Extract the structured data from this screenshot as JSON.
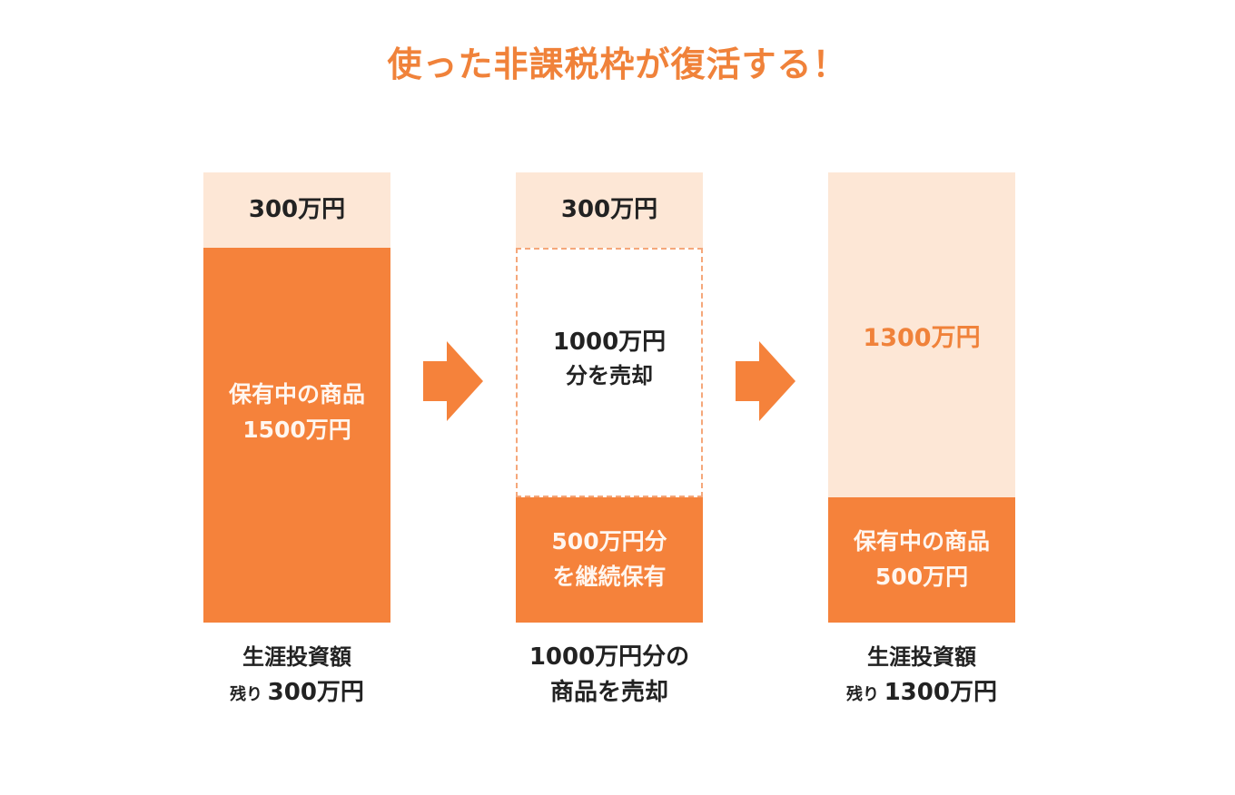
{
  "title": "使った非課税枠が復活する！",
  "columns": [
    {
      "top_label": "300万円",
      "main_lines": [
        "保有中の商品",
        "1500万円"
      ],
      "caption_line1": "生涯投資額",
      "caption_prefix": "残り",
      "caption_amount": "300万円"
    },
    {
      "top_label": "300万円",
      "sold_lines": [
        "1000万円",
        "分を売却"
      ],
      "kept_lines": [
        "500万円分",
        "を継続保有"
      ],
      "caption_line1": "1000万円分の",
      "caption_line2": "商品を売却"
    },
    {
      "top_label": "1300万円",
      "main_lines": [
        "保有中の商品",
        "500万円"
      ],
      "caption_line1": "生涯投資額",
      "caption_prefix": "残り",
      "caption_amount": "1300万円"
    }
  ],
  "colors": {
    "accent": "#f5823b",
    "light": "#fde7d6",
    "dashed_border": "#f5a77a",
    "title": "#f0823a"
  },
  "icons": [
    "arrow-right-icon",
    "arrow-right-icon"
  ]
}
